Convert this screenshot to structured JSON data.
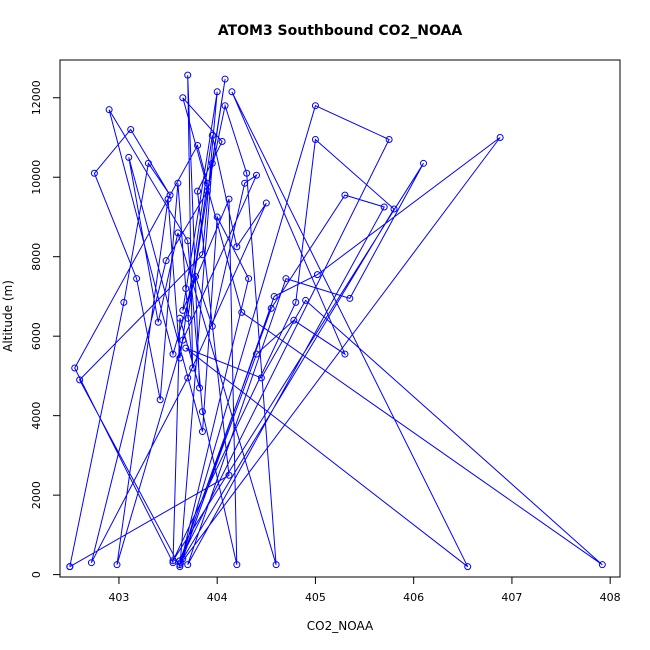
{
  "chart_data": {
    "type": "line",
    "title": "ATOM3 Southbound CO2_NOAA",
    "xlabel": "CO2_NOAA",
    "ylabel": "Altitude (m)",
    "xlim": [
      402.4,
      408.1
    ],
    "ylim": [
      -60,
      12950
    ],
    "xticks": [
      403,
      404,
      405,
      406,
      407,
      408
    ],
    "yticks": [
      0,
      2000,
      4000,
      6000,
      8000,
      10000,
      12000
    ],
    "grid": false,
    "legend": "none",
    "series": [
      {
        "color": "#0000ff",
        "marker": "open-circle",
        "x": [
          402.5,
          403.05,
          403.3,
          403.52,
          403.12,
          402.75,
          403.18,
          403.42,
          403.6,
          403.68,
          403.75,
          403.7,
          403.82,
          403.62,
          403.55,
          402.55,
          403.8,
          403.9,
          403.7,
          404.08,
          403.95,
          403.62,
          402.6,
          403.85,
          404.0,
          403.65,
          404.12,
          404.2,
          403.85,
          403.7,
          402.9,
          403.55,
          403.78,
          403.95,
          404.28,
          404.4,
          403.65,
          402.98,
          403.5,
          403.62,
          403.95,
          404.2,
          404.5,
          403.7,
          402.72,
          403.48,
          403.9,
          404.08,
          404.3,
          404.6,
          403.6,
          403.4,
          403.1,
          403.85,
          404.0,
          404.32,
          403.63,
          405.0,
          405.75,
          403.62,
          404.55,
          405.3,
          405.7,
          403.7,
          404.7,
          405.35,
          406.1,
          403.55,
          404.8,
          405.0,
          405.8,
          403.65,
          404.58,
          405.02,
          406.88,
          403.62,
          404.4,
          404.78,
          405.3,
          404.15,
          406.55,
          403.68,
          404.45,
          404.9,
          407.92,
          404.25,
          403.65,
          404.05,
          403.8,
          404.12,
          402.5
        ],
        "y": [
          200,
          6850,
          10350,
          9550,
          11200,
          10100,
          7450,
          4400,
          9850,
          7200,
          5200,
          12570,
          4700,
          6450,
          300,
          5200,
          10800,
          9850,
          6450,
          12470,
          10350,
          200,
          4900,
          8050,
          12150,
          6650,
          9450,
          250,
          4100,
          8400,
          11700,
          5550,
          7500,
          6250,
          9850,
          10050,
          5900,
          250,
          9450,
          5450,
          11050,
          8250,
          9350,
          4950,
          300,
          7900,
          9650,
          11800,
          10100,
          250,
          8600,
          6350,
          10500,
          3600,
          9000,
          7450,
          300,
          11800,
          10950,
          350,
          6700,
          9550,
          9250,
          250,
          7450,
          6950,
          10350,
          350,
          6850,
          10950,
          9200,
          400,
          7000,
          7550,
          11000,
          250,
          5550,
          6400,
          5550,
          12150,
          200,
          5700,
          4950,
          6900,
          250,
          6600,
          12000,
          10900,
          9650,
          2500,
          200
        ]
      }
    ]
  }
}
